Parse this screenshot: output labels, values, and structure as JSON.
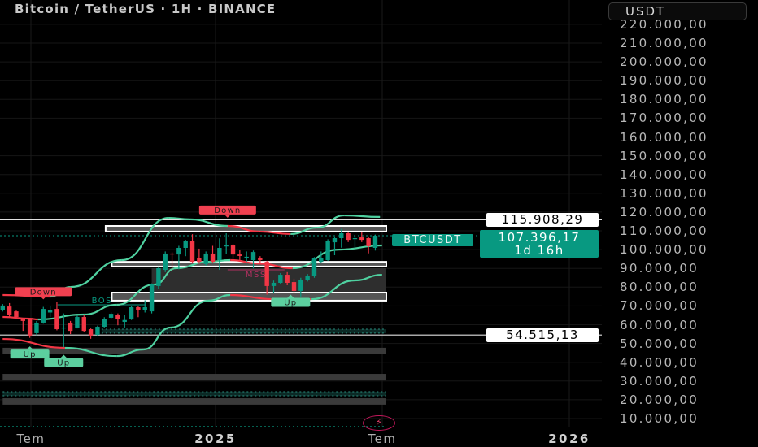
{
  "header": {
    "title": "Bitcoin / TetherUS · 1H · BINANCE",
    "currency": "USDT"
  },
  "price_axis": {
    "labels": [
      "220.000,00",
      "210.000,00",
      "200.000,00",
      "190.000,00",
      "180.000,00",
      "170.000,00",
      "160.000,00",
      "150.000,00",
      "140.000,00",
      "130.000,00",
      "120.000,00",
      "110.000,00",
      "100.000,00",
      "90.000,00",
      "80.000,00",
      "70.000,00",
      "60.000,00",
      "50.000,00",
      "40.000,00",
      "30.000,00",
      "20.000,00",
      "10.000,00"
    ],
    "values": [
      220000,
      210000,
      200000,
      190000,
      180000,
      170000,
      160000,
      150000,
      140000,
      130000,
      120000,
      110000,
      100000,
      90000,
      80000,
      70000,
      60000,
      50000,
      40000,
      30000,
      20000,
      10000
    ]
  },
  "time_axis": {
    "labels": [
      {
        "text": "Tem",
        "bold": false
      },
      {
        "text": "2025",
        "bold": true
      },
      {
        "text": "Tem",
        "bold": false
      },
      {
        "text": "2026",
        "bold": true
      }
    ]
  },
  "tags": {
    "level_high": "115.908,29",
    "level_low": "54.515,13",
    "symbol": "BTCUSDT",
    "last_price": "107.396,17",
    "countdown": "1d 16h"
  },
  "colors": {
    "up": "#089981",
    "down": "#f23645",
    "band_up": "#4fd1a0",
    "band_down": "#f23645",
    "label_up": "#5ccf9f",
    "label_down": "#f04050",
    "zone_fill": "#3a3a3a",
    "zone_border": "#ffffff"
  },
  "chart_data": {
    "type": "candlestick",
    "candles_ohlc": [
      [
        68000,
        71000,
        67000,
        70200
      ],
      [
        69700,
        71500,
        64000,
        65400
      ],
      [
        67100,
        67500,
        63000,
        64100
      ],
      [
        63200,
        63500,
        56700,
        62000
      ],
      [
        62800,
        63500,
        53000,
        54200
      ],
      [
        55500,
        62000,
        54500,
        61100
      ],
      [
        61100,
        69500,
        60500,
        68400
      ],
      [
        66500,
        70000,
        64000,
        68000
      ],
      [
        68400,
        72000,
        57000,
        57600
      ],
      [
        58100,
        66000,
        48000,
        58500
      ],
      [
        61100,
        62000,
        55000,
        56700
      ],
      [
        58500,
        65000,
        58000,
        64100
      ],
      [
        64100,
        65000,
        56000,
        56700
      ],
      [
        57600,
        58000,
        52500,
        54200
      ],
      [
        54600,
        59500,
        54000,
        58900
      ],
      [
        58900,
        64000,
        58500,
        63200
      ],
      [
        63700,
        66500,
        63000,
        65800
      ],
      [
        65400,
        66000,
        59700,
        62800
      ],
      [
        61500,
        65000,
        58500,
        62500
      ],
      [
        62800,
        70000,
        62500,
        69300
      ],
      [
        69300,
        70000,
        64000,
        68000
      ],
      [
        67600,
        73000,
        66500,
        69300
      ],
      [
        67100,
        82000,
        66000,
        81400
      ],
      [
        80600,
        91000,
        79000,
        90100
      ],
      [
        89200,
        99000,
        88000,
        97900
      ],
      [
        97900,
        98500,
        89000,
        97400
      ],
      [
        97400,
        102000,
        89500,
        100900
      ],
      [
        100900,
        105200,
        96500,
        104400
      ],
      [
        104400,
        108200,
        93000,
        93500
      ],
      [
        95300,
        100500,
        92500,
        93500
      ],
      [
        92300,
        99000,
        91500,
        97900
      ],
      [
        97900,
        102000,
        93000,
        93500
      ],
      [
        94400,
        106000,
        89200,
        100900
      ],
      [
        101800,
        108700,
        97500,
        102200
      ],
      [
        102200,
        103000,
        95000,
        97400
      ],
      [
        97400,
        100000,
        94000,
        96600
      ],
      [
        96000,
        99000,
        93500,
        96200
      ],
      [
        94400,
        99500,
        90000,
        98700
      ],
      [
        95700,
        96500,
        92700,
        94400
      ],
      [
        93500,
        94000,
        76000,
        80600
      ],
      [
        80600,
        83500,
        76700,
        82300
      ],
      [
        82300,
        87500,
        81500,
        86600
      ],
      [
        86600,
        88000,
        81000,
        82300
      ],
      [
        82700,
        84500,
        76500,
        78000
      ],
      [
        78000,
        85000,
        74500,
        83600
      ],
      [
        83600,
        87000,
        83000,
        85800
      ],
      [
        85800,
        96000,
        85000,
        95300
      ],
      [
        93500,
        99000,
        93000,
        95700
      ],
      [
        94400,
        105500,
        94000,
        104400
      ],
      [
        103900,
        107000,
        97000,
        106100
      ],
      [
        106100,
        111000,
        101000,
        108700
      ],
      [
        108700,
        109500,
        104000,
        105200
      ],
      [
        105600,
        107500,
        100500,
        106100
      ],
      [
        106500,
        109500,
        104000,
        105200
      ],
      [
        106100,
        107000,
        98000,
        101800
      ],
      [
        100900,
        108000,
        99500,
        107396.17
      ]
    ],
    "bands": [
      {
        "points": [
          [
            0,
            75800,
            "down"
          ],
          [
            7,
            74900,
            "down"
          ],
          [
            10,
            80100,
            "up"
          ],
          [
            17.6,
            94400,
            "up"
          ],
          [
            24.5,
            116900,
            "up"
          ],
          [
            27.6,
            116100,
            "up"
          ],
          [
            33.2,
            112600,
            "up"
          ],
          [
            38,
            109600,
            "down"
          ],
          [
            42.5,
            108300,
            "down"
          ],
          [
            46.4,
            111700,
            "up"
          ],
          [
            50.4,
            118200,
            "up"
          ],
          [
            55.7,
            117400,
            "up"
          ]
        ]
      },
      {
        "points": [
          [
            0,
            64100,
            "down"
          ],
          [
            4,
            63200,
            "down"
          ],
          [
            5.2,
            62800,
            "down"
          ],
          [
            12,
            65400,
            "up"
          ],
          [
            16.8,
            70600,
            "up"
          ],
          [
            22.4,
            81400,
            "up"
          ],
          [
            25.6,
            90100,
            "up"
          ],
          [
            30.4,
            93500,
            "up"
          ],
          [
            33.6,
            94400,
            "up"
          ],
          [
            38,
            92500,
            "down"
          ],
          [
            42.8,
            90100,
            "down"
          ],
          [
            49.6,
            100000,
            "up"
          ],
          [
            56,
            102200,
            "up"
          ]
        ]
      },
      {
        "points": [
          [
            0,
            52400,
            "down"
          ],
          [
            9.2,
            47700,
            "down"
          ],
          [
            16.8,
            43300,
            "up"
          ],
          [
            20.8,
            46800,
            "up"
          ],
          [
            24.8,
            58500,
            "up"
          ],
          [
            30.4,
            72800,
            "up"
          ],
          [
            33.6,
            75800,
            "up"
          ],
          [
            40,
            73600,
            "down"
          ],
          [
            45.6,
            73600,
            "down"
          ],
          [
            52,
            83600,
            "up"
          ],
          [
            56,
            86600,
            "up"
          ]
        ]
      }
    ],
    "zones": [
      {
        "from": 15.2,
        "top": 112600,
        "bottom": 109600,
        "style": "outlined"
      },
      {
        "from": 16.1,
        "top": 93500,
        "bottom": 91000,
        "style": "outlined"
      },
      {
        "from": 22,
        "top": 90100,
        "bottom": 72800,
        "style": "dark"
      },
      {
        "from": 16.1,
        "top": 77100,
        "bottom": 72800,
        "style": "outlined"
      },
      {
        "from": 14.6,
        "top": 57600,
        "bottom": 55500,
        "style": "teal"
      },
      {
        "from": 0,
        "top": 47700,
        "bottom": 44200,
        "style": "gray"
      },
      {
        "from": 0,
        "top": 33800,
        "bottom": 30300,
        "style": "gray"
      },
      {
        "from": 0,
        "top": 24300,
        "bottom": 22100,
        "style": "teal"
      },
      {
        "from": 0,
        "top": 20800,
        "bottom": 17400,
        "style": "gray"
      }
    ],
    "levels": [
      {
        "price": 115908.29,
        "style": "white"
      },
      {
        "price": 54515.13,
        "style": "white"
      },
      {
        "price": 107396.17,
        "style": "dotted"
      },
      {
        "price": 5700,
        "style": "dotted"
      }
    ],
    "structure_lines": [
      {
        "text": "BOS",
        "from": 8.1,
        "to": 21.2,
        "price": 70600,
        "color": "#089981"
      },
      {
        "text": "MSS",
        "from": 33.2,
        "to": 41.6,
        "price": 89200,
        "color": "#b03060"
      }
    ],
    "signal_labels": [
      {
        "text": "Down",
        "index": 6,
        "price": 73500,
        "direction": "down"
      },
      {
        "text": "Down",
        "index": 33.2,
        "price": 117000,
        "direction": "down"
      },
      {
        "text": "Up",
        "index": 4,
        "price": 48500,
        "direction": "up"
      },
      {
        "text": "Up",
        "index": 9,
        "price": 44000,
        "direction": "up"
      },
      {
        "text": "Up",
        "index": 42.5,
        "price": 76000,
        "direction": "up"
      }
    ]
  }
}
